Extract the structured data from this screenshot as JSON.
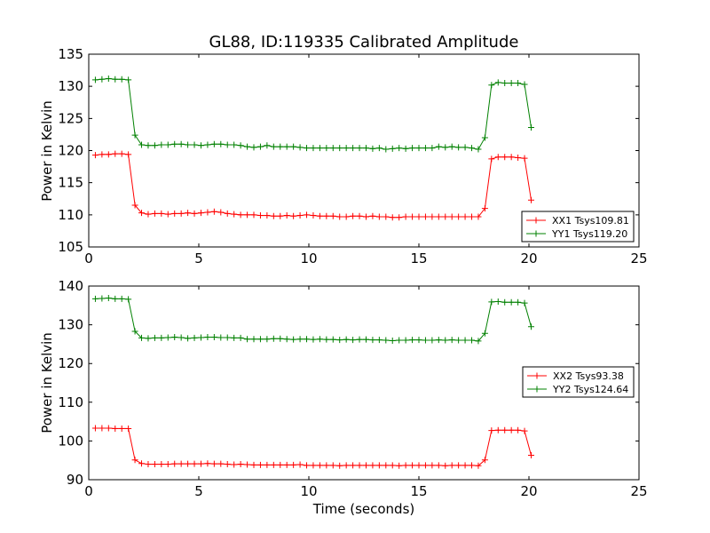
{
  "title": "GL88, ID:119335 Calibrated Amplitude",
  "xlabel": "Time (seconds)",
  "colors": {
    "xx": "#ff0000",
    "yy": "#008000"
  },
  "chart_data": [
    {
      "type": "line",
      "ylabel": "Power in Kelvin",
      "xlim": [
        0,
        25
      ],
      "ylim": [
        105,
        135
      ],
      "xticks": [
        0,
        5,
        10,
        15,
        20,
        25
      ],
      "yticks": [
        105,
        110,
        115,
        120,
        125,
        130,
        135
      ],
      "legend": "lower-right",
      "x": [
        0.3,
        0.6,
        0.9,
        1.2,
        1.5,
        1.8,
        2.1,
        2.4,
        2.7,
        3.0,
        3.3,
        3.6,
        3.9,
        4.2,
        4.5,
        4.8,
        5.1,
        5.4,
        5.7,
        6.0,
        6.3,
        6.6,
        6.9,
        7.2,
        7.5,
        7.8,
        8.1,
        8.4,
        8.7,
        9.0,
        9.3,
        9.6,
        9.9,
        10.2,
        10.5,
        10.8,
        11.1,
        11.4,
        11.7,
        12.0,
        12.3,
        12.6,
        12.9,
        13.2,
        13.5,
        13.8,
        14.1,
        14.4,
        14.7,
        15.0,
        15.3,
        15.6,
        15.9,
        16.2,
        16.5,
        16.8,
        17.1,
        17.4,
        17.7,
        18.0,
        18.3,
        18.6,
        18.9,
        19.2,
        19.5,
        19.8,
        20.1
      ],
      "series": [
        {
          "name": "XX1 Tsys109.81",
          "values": [
            119.3,
            119.4,
            119.4,
            119.5,
            119.5,
            119.4,
            111.5,
            110.3,
            110.1,
            110.2,
            110.2,
            110.1,
            110.2,
            110.2,
            110.3,
            110.2,
            110.3,
            110.4,
            110.5,
            110.4,
            110.2,
            110.1,
            110.0,
            110.0,
            110.0,
            109.9,
            109.9,
            109.8,
            109.8,
            109.9,
            109.8,
            109.9,
            110.0,
            109.9,
            109.8,
            109.8,
            109.8,
            109.7,
            109.7,
            109.8,
            109.8,
            109.7,
            109.8,
            109.7,
            109.7,
            109.6,
            109.6,
            109.7,
            109.7,
            109.7,
            109.7,
            109.7,
            109.7,
            109.7,
            109.7,
            109.7,
            109.7,
            109.7,
            109.7,
            111.0,
            118.7,
            119.0,
            119.0,
            119.0,
            118.9,
            118.8,
            112.3
          ]
        },
        {
          "name": "YY1 Tsys119.20",
          "values": [
            131.0,
            131.1,
            131.2,
            131.1,
            131.1,
            131.0,
            122.4,
            120.9,
            120.8,
            120.8,
            120.9,
            120.9,
            121.0,
            121.0,
            120.9,
            120.9,
            120.8,
            120.9,
            121.0,
            121.0,
            120.9,
            120.9,
            120.8,
            120.6,
            120.5,
            120.6,
            120.8,
            120.6,
            120.6,
            120.6,
            120.6,
            120.5,
            120.4,
            120.4,
            120.4,
            120.4,
            120.4,
            120.4,
            120.4,
            120.4,
            120.4,
            120.4,
            120.3,
            120.4,
            120.2,
            120.3,
            120.4,
            120.3,
            120.4,
            120.4,
            120.4,
            120.4,
            120.6,
            120.5,
            120.6,
            120.5,
            120.5,
            120.4,
            120.2,
            122.0,
            130.2,
            130.6,
            130.5,
            130.5,
            130.5,
            130.3,
            123.6
          ]
        }
      ]
    },
    {
      "type": "line",
      "ylabel": "Power in Kelvin",
      "xlim": [
        0,
        25
      ],
      "ylim": [
        90,
        140
      ],
      "xticks": [
        0,
        5,
        10,
        15,
        20,
        25
      ],
      "yticks": [
        90,
        100,
        110,
        120,
        130,
        140
      ],
      "legend": "center-right",
      "x": [
        0.3,
        0.6,
        0.9,
        1.2,
        1.5,
        1.8,
        2.1,
        2.4,
        2.7,
        3.0,
        3.3,
        3.6,
        3.9,
        4.2,
        4.5,
        4.8,
        5.1,
        5.4,
        5.7,
        6.0,
        6.3,
        6.6,
        6.9,
        7.2,
        7.5,
        7.8,
        8.1,
        8.4,
        8.7,
        9.0,
        9.3,
        9.6,
        9.9,
        10.2,
        10.5,
        10.8,
        11.1,
        11.4,
        11.7,
        12.0,
        12.3,
        12.6,
        12.9,
        13.2,
        13.5,
        13.8,
        14.1,
        14.4,
        14.7,
        15.0,
        15.3,
        15.6,
        15.9,
        16.2,
        16.5,
        16.8,
        17.1,
        17.4,
        17.7,
        18.0,
        18.3,
        18.6,
        18.9,
        19.2,
        19.5,
        19.8,
        20.1
      ],
      "series": [
        {
          "name": "XX2 Tsys93.38",
          "values": [
            103.3,
            103.3,
            103.3,
            103.2,
            103.2,
            103.2,
            95.1,
            94.2,
            94.0,
            94.0,
            94.0,
            94.0,
            94.1,
            94.1,
            94.1,
            94.1,
            94.1,
            94.2,
            94.1,
            94.1,
            94.0,
            93.9,
            94.0,
            93.9,
            93.8,
            93.8,
            93.8,
            93.8,
            93.8,
            93.8,
            93.8,
            93.9,
            93.7,
            93.7,
            93.7,
            93.7,
            93.7,
            93.6,
            93.7,
            93.7,
            93.7,
            93.7,
            93.7,
            93.7,
            93.7,
            93.7,
            93.6,
            93.7,
            93.7,
            93.7,
            93.7,
            93.7,
            93.7,
            93.6,
            93.7,
            93.7,
            93.7,
            93.7,
            93.6,
            95.1,
            102.7,
            102.8,
            102.8,
            102.8,
            102.8,
            102.6,
            96.3
          ]
        },
        {
          "name": "YY2 Tsys124.64",
          "values": [
            136.7,
            136.8,
            136.9,
            136.7,
            136.7,
            136.6,
            128.3,
            126.6,
            126.5,
            126.6,
            126.6,
            126.7,
            126.8,
            126.7,
            126.5,
            126.6,
            126.7,
            126.8,
            126.8,
            126.7,
            126.7,
            126.6,
            126.6,
            126.3,
            126.3,
            126.3,
            126.3,
            126.4,
            126.4,
            126.3,
            126.2,
            126.3,
            126.3,
            126.2,
            126.3,
            126.2,
            126.2,
            126.1,
            126.2,
            126.1,
            126.2,
            126.2,
            126.1,
            126.1,
            126.0,
            125.9,
            126.0,
            126.0,
            126.1,
            126.1,
            126.0,
            126.0,
            126.1,
            126.0,
            126.1,
            126.0,
            126.0,
            126.0,
            125.8,
            127.8,
            135.9,
            136.0,
            135.8,
            135.8,
            135.8,
            135.6,
            129.5
          ]
        }
      ]
    }
  ]
}
